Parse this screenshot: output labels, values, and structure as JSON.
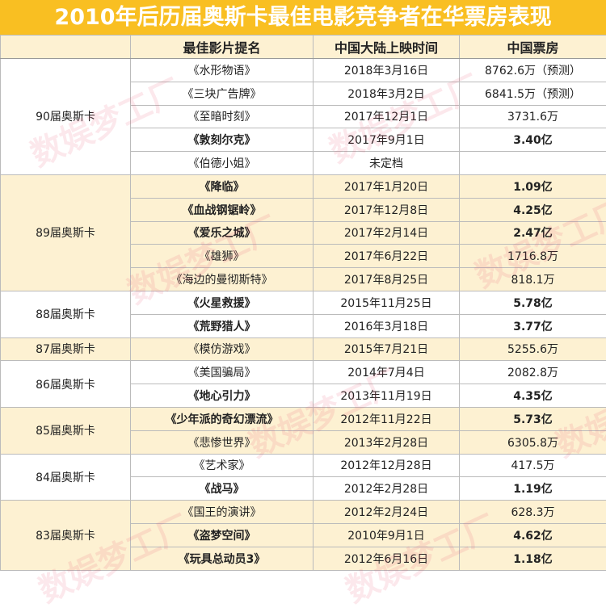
{
  "title": "2010年后历届奥斯卡最佳电影竞争者在华票房表现",
  "headers": [
    "",
    "最佳影片提名",
    "中国大陆上映时间",
    "中国票房"
  ],
  "watermark": "数娱梦工厂",
  "colors": {
    "title_bg": "#F9BF22",
    "cream": "#FDF1D2",
    "watermark": "#EB506E"
  },
  "groups": [
    {
      "label": "90届奥斯卡",
      "shaded": false,
      "rows": [
        {
          "film": "《水形物语》",
          "date": "2018年3月16日",
          "box": "8762.6万（预测）",
          "bold": false
        },
        {
          "film": "《三块广告牌》",
          "date": "2018年3月2日",
          "box": "6841.5万（预测）",
          "bold": false
        },
        {
          "film": "《至暗时刻》",
          "date": "2017年12月1日",
          "box": "3731.6万",
          "bold": false
        },
        {
          "film": "《敦刻尔克》",
          "date": "2017年9月1日",
          "box": "3.40亿",
          "bold": true
        },
        {
          "film": "《伯德小姐》",
          "date": "未定档",
          "box": "",
          "bold": false
        }
      ]
    },
    {
      "label": "89届奥斯卡",
      "shaded": true,
      "rows": [
        {
          "film": "《降临》",
          "date": "2017年1月20日",
          "box": "1.09亿",
          "bold": true
        },
        {
          "film": "《血战钢锯岭》",
          "date": "2017年12月8日",
          "box": "4.25亿",
          "bold": true
        },
        {
          "film": "《爱乐之城》",
          "date": "2017年2月14日",
          "box": "2.47亿",
          "bold": true
        },
        {
          "film": "《雄狮》",
          "date": "2017年6月22日",
          "box": "1716.8万",
          "bold": false
        },
        {
          "film": "《海边的曼彻斯特》",
          "date": "2017年8月25日",
          "box": "818.1万",
          "bold": false
        }
      ]
    },
    {
      "label": "88届奥斯卡",
      "shaded": false,
      "rows": [
        {
          "film": "《火星救援》",
          "date": "2015年11月25日",
          "box": "5.78亿",
          "bold": true
        },
        {
          "film": "《荒野猎人》",
          "date": "2016年3月18日",
          "box": "3.77亿",
          "bold": true
        }
      ]
    },
    {
      "label": "87届奥斯卡",
      "shaded": true,
      "rows": [
        {
          "film": "《模仿游戏》",
          "date": "2015年7月21日",
          "box": "5255.6万",
          "bold": false
        }
      ]
    },
    {
      "label": "86届奥斯卡",
      "shaded": false,
      "rows": [
        {
          "film": "《美国骗局》",
          "date": "2014年7月4日",
          "box": "2082.8万",
          "bold": false
        },
        {
          "film": "《地心引力》",
          "date": "2013年11月19日",
          "box": "4.35亿",
          "bold": true
        }
      ]
    },
    {
      "label": "85届奥斯卡",
      "shaded": true,
      "rows": [
        {
          "film": "《少年派的奇幻漂流》",
          "date": "2012年11月22日",
          "box": "5.73亿",
          "bold": true
        },
        {
          "film": "《悲惨世界》",
          "date": "2013年2月28日",
          "box": "6305.8万",
          "bold": false
        }
      ]
    },
    {
      "label": "84届奥斯卡",
      "shaded": false,
      "rows": [
        {
          "film": "《艺术家》",
          "date": "2012年12月28日",
          "box": "417.5万",
          "bold": false
        },
        {
          "film": "《战马》",
          "date": "2012年2月28日",
          "box": "1.19亿",
          "bold": true
        }
      ]
    },
    {
      "label": "83届奥斯卡",
      "shaded": true,
      "rows": [
        {
          "film": "《国王的演讲》",
          "date": "2012年2月24日",
          "box": "628.3万",
          "bold": false
        },
        {
          "film": "《盗梦空间》",
          "date": "2010年9月1日",
          "box": "4.62亿",
          "bold": true
        },
        {
          "film": "《玩具总动员3》",
          "date": "2012年6月16日",
          "box": "1.18亿",
          "bold": true
        }
      ]
    }
  ]
}
